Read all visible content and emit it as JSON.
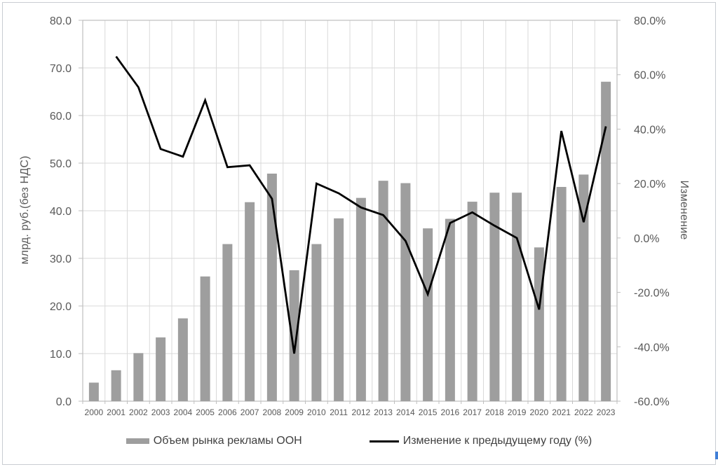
{
  "chart_data": {
    "type": "combo-bar-line",
    "categories": [
      "2000",
      "2001",
      "2002",
      "2003",
      "2004",
      "2005",
      "2006",
      "2007",
      "2008",
      "2009",
      "2010",
      "2011",
      "2012",
      "2013",
      "2014",
      "2015",
      "2016",
      "2017",
      "2018",
      "2019",
      "2020",
      "2021",
      "2022",
      "2023"
    ],
    "series": [
      {
        "name": "Объем рынка рекламы ООН",
        "type": "bar",
        "axis": "left",
        "color": "#9e9e9e",
        "values": [
          3.9,
          6.5,
          10.1,
          13.4,
          17.4,
          26.2,
          33.0,
          41.8,
          47.8,
          27.5,
          33.0,
          38.4,
          42.7,
          46.3,
          45.8,
          36.3,
          38.3,
          41.9,
          43.8,
          43.8,
          32.3,
          45.0,
          47.6,
          67.1
        ]
      },
      {
        "name": "Изменение к предыдущему году (%)",
        "type": "line",
        "axis": "right",
        "color": "#000000",
        "values": [
          null,
          66.7,
          55.4,
          32.7,
          29.9,
          50.6,
          26.0,
          26.7,
          14.4,
          -42.5,
          20.0,
          16.4,
          11.2,
          8.4,
          -1.1,
          -20.7,
          5.5,
          9.4,
          4.5,
          0.0,
          -26.3,
          39.3,
          5.8,
          41.0
        ]
      }
    ],
    "left_axis": {
      "title": "млрд. руб.(без НДС)",
      "min": 0,
      "max": 80,
      "step": 10,
      "ticks": [
        "80.0",
        "70.0",
        "60.0",
        "50.0",
        "40.0",
        "30.0",
        "20.0",
        "10.0",
        "0.0"
      ]
    },
    "right_axis": {
      "title": "Изменение",
      "min": -60,
      "max": 80,
      "step": 20,
      "ticks": [
        "80.0%",
        "60.0%",
        "40.0%",
        "20.0%",
        "0.0%",
        "-20.0%",
        "-40.0%",
        "-60.0%"
      ]
    },
    "grid": true,
    "legend_position": "bottom"
  },
  "colors": {
    "bar": "#9e9e9e",
    "line": "#000000",
    "grid": "#d9d9d9",
    "frame": "#bfbfbf",
    "tick_text": "#595959",
    "year_text": "#595959",
    "legend_text": "#3f3f3f",
    "page_border": "#c9cdd2",
    "artifact_blue": "#3f7ed6"
  }
}
